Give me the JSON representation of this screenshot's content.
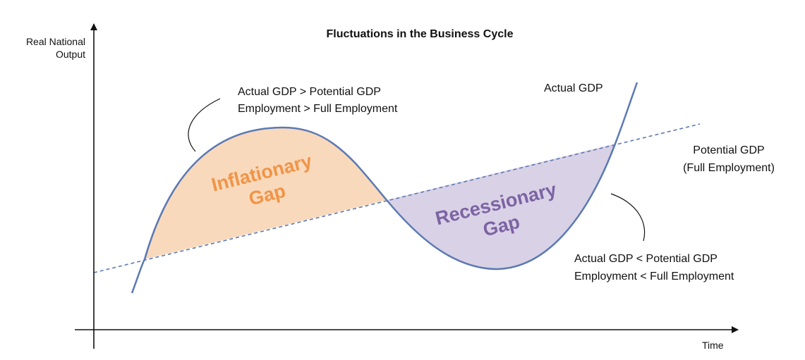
{
  "title": "Fluctuations in the Business Cycle",
  "axes": {
    "y_label_line1": "Real National",
    "y_label_line2": "Output",
    "x_label": "Time"
  },
  "curves": {
    "actual_label": "Actual GDP",
    "potential_label_line1": "Potential GDP",
    "potential_label_line2": "(Full Employment)"
  },
  "gaps": {
    "inflationary_line1": "Inflationary",
    "inflationary_line2": "Gap",
    "recessionary_line1": "Recessionary",
    "recessionary_line2": "Gap"
  },
  "annotations": {
    "upper_line1": "Actual GDP > Potential GDP",
    "upper_line2": "Employment > Full Employment",
    "lower_line1": "Actual GDP < Potential GDP",
    "lower_line2": "Employment < Full Employment"
  },
  "colors": {
    "curve": "#5b7ab3",
    "inflationary_fill": "#f9d9bc",
    "inflationary_text": "#f09447",
    "recessionary_fill": "#d9d1e6",
    "recessionary_text": "#7c63a3",
    "axis": "#111111"
  }
}
